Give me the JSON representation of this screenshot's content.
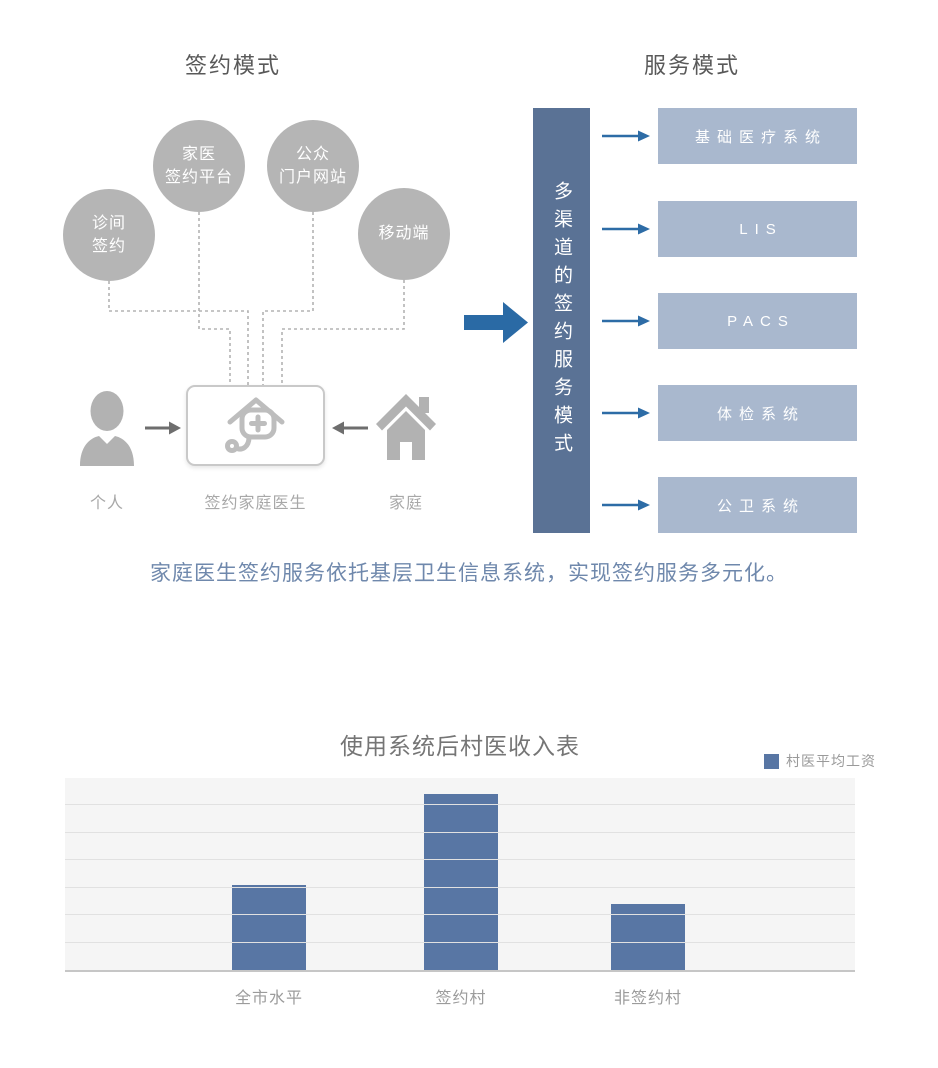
{
  "signing": {
    "title": "签约模式",
    "circles": [
      {
        "name": "家医签约平台",
        "lines": [
          "家医",
          "签约平台"
        ]
      },
      {
        "name": "公众门户网站",
        "lines": [
          "公众",
          "门户网站"
        ]
      },
      {
        "name": "诊间签约",
        "lines": [
          "诊间",
          "签约"
        ]
      },
      {
        "name": "移动端",
        "lines": [
          "移动端"
        ]
      }
    ],
    "actors": {
      "person": "个人",
      "center": "签约家庭医生",
      "family": "家庭"
    }
  },
  "service": {
    "title": "服务模式",
    "bar_label": "多渠道的签约服务模式",
    "systems": [
      "基础医疗系统",
      "LIS",
      "PACS",
      "体检系统",
      "公卫系统"
    ]
  },
  "caption": "家庭医生签约服务依托基层卫生信息系统，实现签约服务多元化。",
  "chart_data": {
    "type": "bar",
    "title": "使用系统后村医收入表",
    "legend": [
      "村医平均工资"
    ],
    "legend_position": "top-right",
    "categories": [
      "全市水平",
      "签约村",
      "非签约村"
    ],
    "values": [
      3.1,
      6.4,
      2.4
    ],
    "ylim": [
      0,
      7
    ],
    "gridlines": true,
    "y_axis_labels_visible": false,
    "note": "no numeric axis labels visible; values estimated in gridline units",
    "xlabel": "",
    "ylabel": ""
  },
  "colors": {
    "circle_gray": "#b5b5b5",
    "icon_gray": "#b2b2b2",
    "channel_bar_blue": "#5a7295",
    "system_box_blue": "#a9b8ce",
    "big_arrow_blue": "#2a6aa5",
    "flow_arrow_blue": "#2d6ca6",
    "caption_blue": "#6f88ac",
    "chart_bar_blue": "#5876a4",
    "heading_gray": "#595959",
    "label_gray": "#a8a8a8"
  }
}
